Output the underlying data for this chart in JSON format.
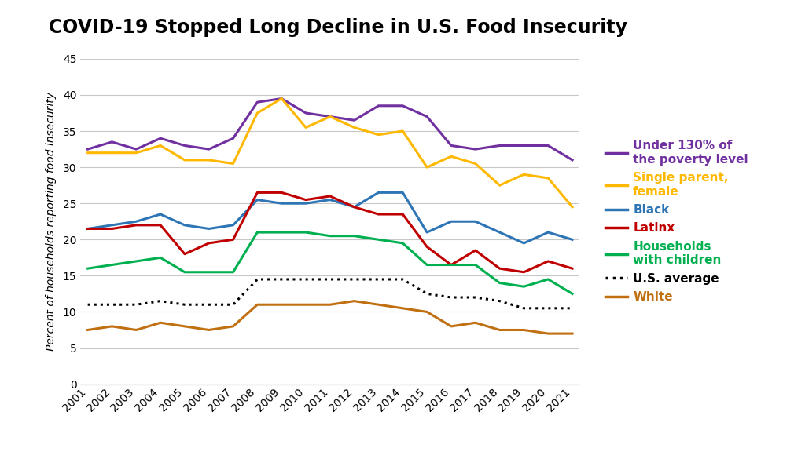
{
  "title": "COVID-19 Stopped Long Decline in U.S. Food Insecurity",
  "ylabel": "Percent of households reporting food insecurity",
  "years": [
    2001,
    2002,
    2003,
    2004,
    2005,
    2006,
    2007,
    2008,
    2009,
    2010,
    2011,
    2012,
    2013,
    2014,
    2015,
    2016,
    2017,
    2018,
    2019,
    2020,
    2021
  ],
  "series": {
    "Under 130% of\nthe poverty level": {
      "color": "#7030A0",
      "linestyle": "solid",
      "linewidth": 2.2,
      "data": [
        32.5,
        33.5,
        32.5,
        34.0,
        33.0,
        32.5,
        34.0,
        39.0,
        39.5,
        37.5,
        37.0,
        36.5,
        38.5,
        38.5,
        37.0,
        33.0,
        32.5,
        33.0,
        33.0,
        33.0,
        31.0
      ]
    },
    "Single parent,\nfemale": {
      "color": "#FFB800",
      "linestyle": "solid",
      "linewidth": 2.2,
      "data": [
        32.0,
        32.0,
        32.0,
        33.0,
        31.0,
        31.0,
        30.5,
        37.5,
        39.5,
        35.5,
        37.0,
        35.5,
        34.5,
        35.0,
        30.0,
        31.5,
        30.5,
        27.5,
        29.0,
        28.5,
        24.5
      ]
    },
    "Black": {
      "color": "#2E75B6",
      "linestyle": "solid",
      "linewidth": 2.2,
      "data": [
        21.5,
        22.0,
        22.5,
        23.5,
        22.0,
        21.5,
        22.0,
        25.5,
        25.0,
        25.0,
        25.5,
        24.5,
        26.5,
        26.5,
        21.0,
        22.5,
        22.5,
        21.0,
        19.5,
        21.0,
        20.0
      ]
    },
    "Latinx": {
      "color": "#C00000",
      "linestyle": "solid",
      "linewidth": 2.2,
      "data": [
        21.5,
        21.5,
        22.0,
        22.0,
        18.0,
        19.5,
        20.0,
        26.5,
        26.5,
        25.5,
        26.0,
        24.5,
        23.5,
        23.5,
        19.0,
        16.5,
        18.5,
        16.0,
        15.5,
        17.0,
        16.0
      ]
    },
    "Households\nwith children": {
      "color": "#00B050",
      "linestyle": "solid",
      "linewidth": 2.2,
      "data": [
        16.0,
        16.5,
        17.0,
        17.5,
        15.5,
        15.5,
        15.5,
        21.0,
        21.0,
        21.0,
        20.5,
        20.5,
        20.0,
        19.5,
        16.5,
        16.5,
        16.5,
        14.0,
        13.5,
        14.5,
        12.5
      ]
    },
    "U.S. average": {
      "color": "#000000",
      "linestyle": "dotted",
      "linewidth": 2.2,
      "data": [
        11.0,
        11.0,
        11.0,
        11.5,
        11.0,
        11.0,
        11.0,
        14.5,
        14.5,
        14.5,
        14.5,
        14.5,
        14.5,
        14.5,
        12.5,
        12.0,
        12.0,
        11.5,
        10.5,
        10.5,
        10.5
      ]
    },
    "White": {
      "color": "#C07010",
      "linestyle": "solid",
      "linewidth": 2.2,
      "data": [
        7.5,
        8.0,
        7.5,
        8.5,
        8.0,
        7.5,
        8.0,
        11.0,
        11.0,
        11.0,
        11.0,
        11.5,
        11.0,
        10.5,
        10.0,
        8.0,
        8.5,
        7.5,
        7.5,
        7.0,
        7.0
      ]
    }
  },
  "ylim": [
    0,
    45
  ],
  "yticks": [
    0,
    5,
    10,
    15,
    20,
    25,
    30,
    35,
    40,
    45
  ],
  "background_color": "#FFFFFF",
  "legend_order": [
    "Under 130% of\nthe poverty level",
    "Single parent,\nfemale",
    "Black",
    "Latinx",
    "Households\nwith children",
    "U.S. average",
    "White"
  ],
  "title_fontsize": 17,
  "axis_fontsize": 10,
  "legend_fontsize": 11
}
